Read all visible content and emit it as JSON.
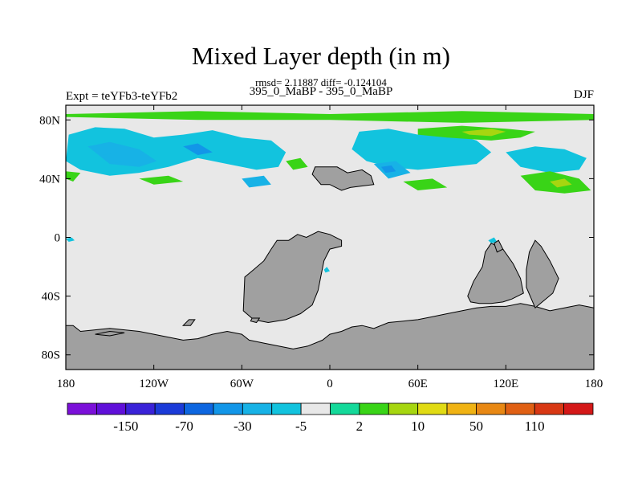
{
  "chart_data": {
    "type": "heatmap",
    "title": "Mixed Layer depth (in m)",
    "subtitle": "rmsd= 2.11887 diff= -0.124104",
    "center_string": "395_0_MaBP - 395_0_MaBP",
    "left_string": "Expt = teYFb3-teYFb2",
    "right_string": "DJF",
    "xlim": [
      -180,
      180
    ],
    "ylim": [
      -90,
      90
    ],
    "x_ticks": [
      {
        "value": -180,
        "label": "180"
      },
      {
        "value": -120,
        "label": "120W"
      },
      {
        "value": -60,
        "label": "60W"
      },
      {
        "value": 0,
        "label": "0"
      },
      {
        "value": 60,
        "label": "60E"
      },
      {
        "value": 120,
        "label": "120E"
      },
      {
        "value": 180,
        "label": "180"
      }
    ],
    "y_ticks": [
      {
        "value": 80,
        "label": "80N"
      },
      {
        "value": 40,
        "label": "40N"
      },
      {
        "value": 0,
        "label": "0"
      },
      {
        "value": -40,
        "label": "40S"
      },
      {
        "value": -80,
        "label": "80S"
      }
    ],
    "colorbar": {
      "colors": [
        "#7b10d9",
        "#6010d9",
        "#3a22d8",
        "#1b3bd8",
        "#0d66e0",
        "#1296e8",
        "#17b2e6",
        "#12c3de",
        "#e8e8e8",
        "#14d99a",
        "#39d417",
        "#a6d610",
        "#e1db14",
        "#f0b314",
        "#e88814",
        "#e06014",
        "#d83814",
        "#d41818"
      ],
      "labels": [
        {
          "after": 1,
          "label": "-150"
        },
        {
          "after": 3,
          "label": "-70"
        },
        {
          "after": 5,
          "label": "-30"
        },
        {
          "after": 7,
          "label": "-5"
        },
        {
          "after": 9,
          "label": "2"
        },
        {
          "after": 11,
          "label": "10"
        },
        {
          "after": 13,
          "label": "50"
        },
        {
          "after": 15,
          "label": "110"
        }
      ]
    },
    "land_color": "#a0a0a0",
    "background_value_color": "#e8e8e8",
    "land": [
      [
        [
          -180,
          -90
        ],
        [
          -180,
          -60
        ],
        [
          -175,
          -60
        ],
        [
          -170,
          -64
        ],
        [
          -160,
          -63
        ],
        [
          -150,
          -62
        ],
        [
          -140,
          -63
        ],
        [
          -130,
          -64
        ],
        [
          -120,
          -66
        ],
        [
          -110,
          -68
        ],
        [
          -100,
          -70
        ],
        [
          -90,
          -69
        ],
        [
          -80,
          -66
        ],
        [
          -70,
          -64
        ],
        [
          -60,
          -66
        ],
        [
          -55,
          -70
        ],
        [
          -45,
          -72
        ],
        [
          -35,
          -74
        ],
        [
          -25,
          -76
        ],
        [
          -15,
          -74
        ],
        [
          -5,
          -70
        ],
        [
          0,
          -66
        ],
        [
          8,
          -64
        ],
        [
          15,
          -61
        ],
        [
          22,
          -60
        ],
        [
          30,
          -62
        ],
        [
          40,
          -58
        ],
        [
          50,
          -57
        ],
        [
          60,
          -56
        ],
        [
          70,
          -54
        ],
        [
          80,
          -52
        ],
        [
          90,
          -50
        ],
        [
          100,
          -48
        ],
        [
          110,
          -47
        ],
        [
          120,
          -47
        ],
        [
          130,
          -45
        ],
        [
          140,
          -47
        ],
        [
          150,
          -50
        ],
        [
          160,
          -48
        ],
        [
          170,
          -46
        ],
        [
          180,
          -48
        ],
        [
          180,
          -90
        ]
      ],
      [
        [
          -59,
          -50
        ],
        [
          -58,
          -27
        ],
        [
          -52,
          -22
        ],
        [
          -45,
          -16
        ],
        [
          -40,
          -8
        ],
        [
          -36,
          -2
        ],
        [
          -28,
          -2
        ],
        [
          -22,
          2
        ],
        [
          -16,
          0
        ],
        [
          -8,
          4
        ],
        [
          0,
          2
        ],
        [
          8,
          -2
        ],
        [
          8,
          -6
        ],
        [
          0,
          -8
        ],
        [
          -4,
          -16
        ],
        [
          -6,
          -26
        ],
        [
          -8,
          -36
        ],
        [
          -12,
          -46
        ],
        [
          -20,
          -52
        ],
        [
          -30,
          -56
        ],
        [
          -42,
          -58
        ],
        [
          -52,
          -56
        ]
      ],
      [
        [
          -53,
          -55
        ],
        [
          -48,
          -55
        ],
        [
          -50,
          -58
        ],
        [
          -54,
          -57
        ]
      ],
      [
        [
          -12,
          43
        ],
        [
          -10,
          48
        ],
        [
          5,
          48
        ],
        [
          12,
          44
        ],
        [
          22,
          46
        ],
        [
          28,
          42
        ],
        [
          30,
          36
        ],
        [
          22,
          35
        ],
        [
          14,
          34
        ],
        [
          8,
          32
        ],
        [
          0,
          36
        ],
        [
          -6,
          36
        ]
      ],
      [
        [
          110,
          -4
        ],
        [
          118,
          -8
        ],
        [
          125,
          -18
        ],
        [
          130,
          -28
        ],
        [
          132,
          -38
        ],
        [
          124,
          -42
        ],
        [
          118,
          -44
        ],
        [
          110,
          -45
        ],
        [
          102,
          -45
        ],
        [
          96,
          -44
        ],
        [
          94,
          -40
        ],
        [
          98,
          -30
        ],
        [
          104,
          -20
        ],
        [
          106,
          -10
        ]
      ],
      [
        [
          140,
          -48
        ],
        [
          152,
          -38
        ],
        [
          156,
          -28
        ],
        [
          150,
          -16
        ],
        [
          144,
          -6
        ],
        [
          140,
          -2
        ],
        [
          136,
          -10
        ],
        [
          134,
          -22
        ],
        [
          134,
          -34
        ]
      ],
      [
        [
          114,
          -10
        ],
        [
          112,
          -4
        ],
        [
          115,
          -2
        ],
        [
          118,
          -8
        ]
      ],
      [
        [
          -100,
          -60
        ],
        [
          -96,
          -56
        ],
        [
          -92,
          -56
        ],
        [
          -95,
          -60
        ]
      ],
      [
        [
          -160,
          -66
        ],
        [
          -150,
          -64
        ],
        [
          -140,
          -65
        ],
        [
          -150,
          -67
        ]
      ]
    ],
    "anomaly_patches": [
      {
        "class": 7,
        "points": [
          [
            -178,
            70
          ],
          [
            -160,
            75
          ],
          [
            -140,
            74
          ],
          [
            -120,
            68
          ],
          [
            -100,
            70
          ],
          [
            -80,
            73
          ],
          [
            -60,
            68
          ],
          [
            -40,
            66
          ],
          [
            -30,
            58
          ],
          [
            -35,
            48
          ],
          [
            -50,
            46
          ],
          [
            -70,
            50
          ],
          [
            -90,
            54
          ],
          [
            -110,
            48
          ],
          [
            -130,
            44
          ],
          [
            -150,
            42
          ],
          [
            -170,
            46
          ],
          [
            -180,
            52
          ]
        ]
      },
      {
        "class": 6,
        "points": [
          [
            -165,
            62
          ],
          [
            -150,
            65
          ],
          [
            -130,
            60
          ],
          [
            -118,
            52
          ],
          [
            -130,
            48
          ],
          [
            -150,
            50
          ]
        ]
      },
      {
        "class": 5,
        "points": [
          [
            -100,
            62
          ],
          [
            -90,
            64
          ],
          [
            -80,
            58
          ],
          [
            -90,
            56
          ]
        ]
      },
      {
        "class": 6,
        "points": [
          [
            -155,
            56
          ],
          [
            -145,
            58
          ],
          [
            -140,
            52
          ],
          [
            -150,
            50
          ]
        ]
      },
      {
        "class": 7,
        "points": [
          [
            20,
            72
          ],
          [
            40,
            74
          ],
          [
            60,
            70
          ],
          [
            80,
            72
          ],
          [
            100,
            66
          ],
          [
            110,
            58
          ],
          [
            100,
            50
          ],
          [
            80,
            48
          ],
          [
            60,
            46
          ],
          [
            40,
            48
          ],
          [
            25,
            52
          ],
          [
            15,
            60
          ]
        ]
      },
      {
        "class": 6,
        "points": [
          [
            30,
            50
          ],
          [
            45,
            52
          ],
          [
            55,
            44
          ],
          [
            40,
            40
          ]
        ]
      },
      {
        "class": 5,
        "points": [
          [
            35,
            48
          ],
          [
            42,
            49
          ],
          [
            45,
            45
          ],
          [
            38,
            44
          ]
        ]
      },
      {
        "class": 7,
        "points": [
          [
            120,
            58
          ],
          [
            140,
            62
          ],
          [
            160,
            60
          ],
          [
            175,
            54
          ],
          [
            170,
            46
          ],
          [
            150,
            44
          ],
          [
            130,
            48
          ]
        ]
      },
      {
        "class": 6,
        "points": [
          [
            -60,
            40
          ],
          [
            -45,
            42
          ],
          [
            -40,
            36
          ],
          [
            -55,
            34
          ]
        ]
      },
      {
        "class": 10,
        "points": [
          [
            -180,
            84
          ],
          [
            -90,
            86
          ],
          [
            0,
            84
          ],
          [
            90,
            86
          ],
          [
            180,
            84
          ],
          [
            180,
            80
          ],
          [
            90,
            78
          ],
          [
            0,
            80
          ],
          [
            -90,
            80
          ],
          [
            -180,
            82
          ]
        ]
      },
      {
        "class": 10,
        "points": [
          [
            60,
            74
          ],
          [
            90,
            76
          ],
          [
            120,
            74
          ],
          [
            140,
            72
          ],
          [
            130,
            68
          ],
          [
            110,
            66
          ],
          [
            80,
            68
          ],
          [
            60,
            70
          ]
        ]
      },
      {
        "class": 11,
        "points": [
          [
            90,
            72
          ],
          [
            110,
            74
          ],
          [
            120,
            72
          ],
          [
            110,
            69
          ],
          [
            95,
            70
          ]
        ]
      },
      {
        "class": 10,
        "points": [
          [
            -130,
            40
          ],
          [
            -110,
            42
          ],
          [
            -100,
            38
          ],
          [
            -120,
            36
          ]
        ]
      },
      {
        "class": 10,
        "points": [
          [
            -180,
            45
          ],
          [
            -170,
            44
          ],
          [
            -175,
            38
          ],
          [
            -180,
            40
          ]
        ]
      },
      {
        "class": 10,
        "points": [
          [
            130,
            42
          ],
          [
            150,
            45
          ],
          [
            170,
            40
          ],
          [
            178,
            32
          ],
          [
            160,
            30
          ],
          [
            140,
            32
          ]
        ]
      },
      {
        "class": 11,
        "points": [
          [
            150,
            38
          ],
          [
            160,
            40
          ],
          [
            165,
            36
          ],
          [
            155,
            34
          ]
        ]
      },
      {
        "class": 10,
        "points": [
          [
            50,
            38
          ],
          [
            70,
            40
          ],
          [
            80,
            34
          ],
          [
            60,
            32
          ]
        ]
      },
      {
        "class": 10,
        "points": [
          [
            -30,
            52
          ],
          [
            -20,
            54
          ],
          [
            -15,
            48
          ],
          [
            -25,
            46
          ]
        ]
      },
      {
        "class": 7,
        "points": [
          [
            -180,
            -1
          ],
          [
            -176,
            0
          ],
          [
            -174,
            -2
          ],
          [
            -178,
            -3
          ]
        ]
      },
      {
        "class": 7,
        "points": [
          [
            108,
            -2
          ],
          [
            112,
            0
          ],
          [
            114,
            -3
          ],
          [
            110,
            -4
          ]
        ]
      },
      {
        "class": 7,
        "points": [
          [
            -4,
            -22
          ],
          [
            -2,
            -20
          ],
          [
            0,
            -23
          ],
          [
            -3,
            -24
          ]
        ]
      }
    ]
  }
}
